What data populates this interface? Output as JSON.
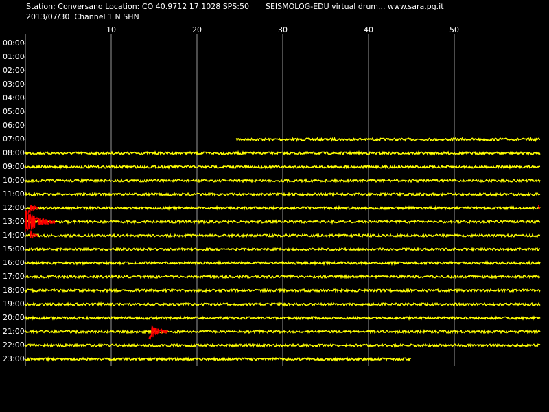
{
  "header": {
    "station": "Station: Conversano Location: CO 40.9712 17.1028 SPS:50",
    "source": "SEISMOLOG-EDU virtual drum... www.sara.pg.it",
    "date_channel": "2013/07/30  Channel 1 N SHN"
  },
  "drum": {
    "xlim": [
      0,
      60
    ],
    "xticks": [
      10,
      20,
      30,
      40,
      50
    ],
    "rows": [
      {
        "label": "00:00",
        "start": null,
        "end": null,
        "events": []
      },
      {
        "label": "01:00",
        "start": null,
        "end": null,
        "events": []
      },
      {
        "label": "02:00",
        "start": null,
        "end": null,
        "events": []
      },
      {
        "label": "03:00",
        "start": null,
        "end": null,
        "events": []
      },
      {
        "label": "04:00",
        "start": null,
        "end": null,
        "events": []
      },
      {
        "label": "05:00",
        "start": null,
        "end": null,
        "events": []
      },
      {
        "label": "06:00",
        "start": null,
        "end": null,
        "events": []
      },
      {
        "label": "07:00",
        "start": 24.6,
        "end": 60,
        "events": []
      },
      {
        "label": "08:00",
        "start": 0,
        "end": 60,
        "events": []
      },
      {
        "label": "09:00",
        "start": 0,
        "end": 60,
        "events": []
      },
      {
        "label": "10:00",
        "start": 0,
        "end": 60,
        "events": []
      },
      {
        "label": "11:00",
        "start": 0,
        "end": 60,
        "events": []
      },
      {
        "label": "12:00",
        "start": 0,
        "end": 60,
        "events": [
          {
            "start": 0.3,
            "end": 1.6
          },
          {
            "start": 59.8,
            "end": 60
          }
        ]
      },
      {
        "label": "13:00",
        "start": 0,
        "end": 60,
        "events": [
          {
            "start": 0,
            "end": 3.5
          }
        ]
      },
      {
        "label": "14:00",
        "start": 0,
        "end": 60,
        "events": [
          {
            "start": 0.5,
            "end": 1.5
          }
        ]
      },
      {
        "label": "15:00",
        "start": 0,
        "end": 60,
        "events": []
      },
      {
        "label": "16:00",
        "start": 0,
        "end": 60,
        "events": []
      },
      {
        "label": "17:00",
        "start": 0,
        "end": 60,
        "events": []
      },
      {
        "label": "18:00",
        "start": 0,
        "end": 60,
        "events": []
      },
      {
        "label": "19:00",
        "start": 0,
        "end": 60,
        "events": []
      },
      {
        "label": "20:00",
        "start": 0,
        "end": 60,
        "events": []
      },
      {
        "label": "21:00",
        "start": 0,
        "end": 60,
        "events": [
          {
            "start": 14.4,
            "end": 16.6
          }
        ]
      },
      {
        "label": "22:00",
        "start": 0,
        "end": 60,
        "events": []
      },
      {
        "label": "23:00",
        "start": 0,
        "end": 45,
        "events": []
      }
    ]
  }
}
